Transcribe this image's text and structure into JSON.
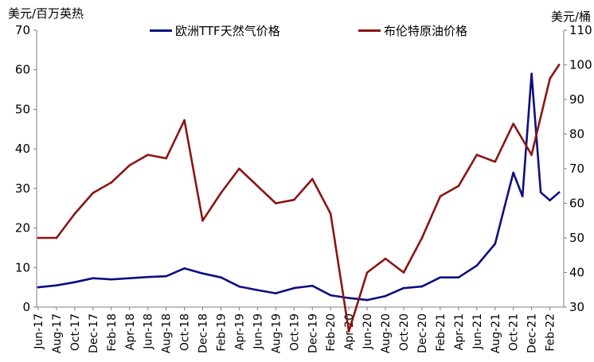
{
  "chart_data": {
    "type": "line",
    "title": "",
    "left_axis": {
      "label": "美元/百万英热",
      "ylim": [
        0,
        70
      ],
      "ticks": [
        0,
        10,
        20,
        30,
        40,
        50,
        60,
        70
      ]
    },
    "right_axis": {
      "label": "美元/桶",
      "ylim": [
        30,
        110
      ],
      "ticks": [
        30,
        40,
        50,
        60,
        70,
        80,
        90,
        100,
        110
      ]
    },
    "x_ticks": [
      "Jun-17",
      "Aug-17",
      "Oct-17",
      "Dec-17",
      "Feb-18",
      "Apr-18",
      "Jun-18",
      "Aug-18",
      "Oct-18",
      "Dec-18",
      "Feb-19",
      "Apr-19",
      "Jun-19",
      "Aug-19",
      "Oct-19",
      "Dec-19",
      "Feb-20",
      "Apr-20",
      "Jun-20",
      "Aug-20",
      "Oct-20",
      "Dec-20",
      "Feb-21",
      "Apr-21",
      "Jun-21",
      "Aug-21",
      "Oct-21",
      "Dec-21",
      "Feb-22"
    ],
    "grid": false,
    "legend_position": "top",
    "series": [
      {
        "name": "欧洲TTF天然气价格",
        "axis": "left",
        "color": "#0b0f80",
        "x": [
          "Jun-17",
          "Aug-17",
          "Oct-17",
          "Dec-17",
          "Feb-18",
          "Apr-18",
          "Jun-18",
          "Aug-18",
          "Oct-18",
          "Dec-18",
          "Feb-19",
          "Apr-19",
          "Jun-19",
          "Aug-19",
          "Oct-19",
          "Dec-19",
          "Feb-20",
          "Apr-20",
          "Jun-20",
          "Aug-20",
          "Oct-20",
          "Dec-20",
          "Feb-21",
          "Apr-21",
          "Jun-21",
          "Aug-21",
          "Sep-21",
          "Oct-21",
          "Nov-21",
          "Dec-21",
          "Jan-22",
          "Feb-22",
          "Mar-22"
        ],
        "values": [
          5.0,
          5.5,
          6.3,
          7.3,
          7.0,
          7.3,
          7.6,
          7.8,
          9.8,
          8.5,
          7.5,
          5.2,
          4.3,
          3.5,
          4.8,
          5.4,
          3.0,
          2.3,
          1.8,
          2.8,
          4.8,
          5.2,
          7.5,
          7.5,
          10.5,
          16.0,
          25.0,
          34.0,
          28.0,
          59.0,
          29.0,
          27.0,
          29.0
        ]
      },
      {
        "name": "布伦特原油价格",
        "axis": "right",
        "color": "#8c1414",
        "x": [
          "Jun-17",
          "Aug-17",
          "Oct-17",
          "Dec-17",
          "Feb-18",
          "Apr-18",
          "Jun-18",
          "Aug-18",
          "Oct-18",
          "Dec-18",
          "Feb-19",
          "Apr-19",
          "Jun-19",
          "Aug-19",
          "Oct-19",
          "Dec-19",
          "Feb-20",
          "Apr-20",
          "Jun-20",
          "Aug-20",
          "Oct-20",
          "Dec-20",
          "Feb-21",
          "Apr-21",
          "Jun-21",
          "Aug-21",
          "Oct-21",
          "Dec-21",
          "Feb-22",
          "Mar-22"
        ],
        "values": [
          50,
          50,
          57,
          63,
          66,
          71,
          74,
          73,
          84,
          55,
          63,
          70,
          65,
          60,
          61,
          67,
          57,
          23,
          40,
          44,
          40,
          50,
          62,
          65,
          74,
          72,
          83,
          74,
          96,
          100
        ]
      }
    ]
  }
}
